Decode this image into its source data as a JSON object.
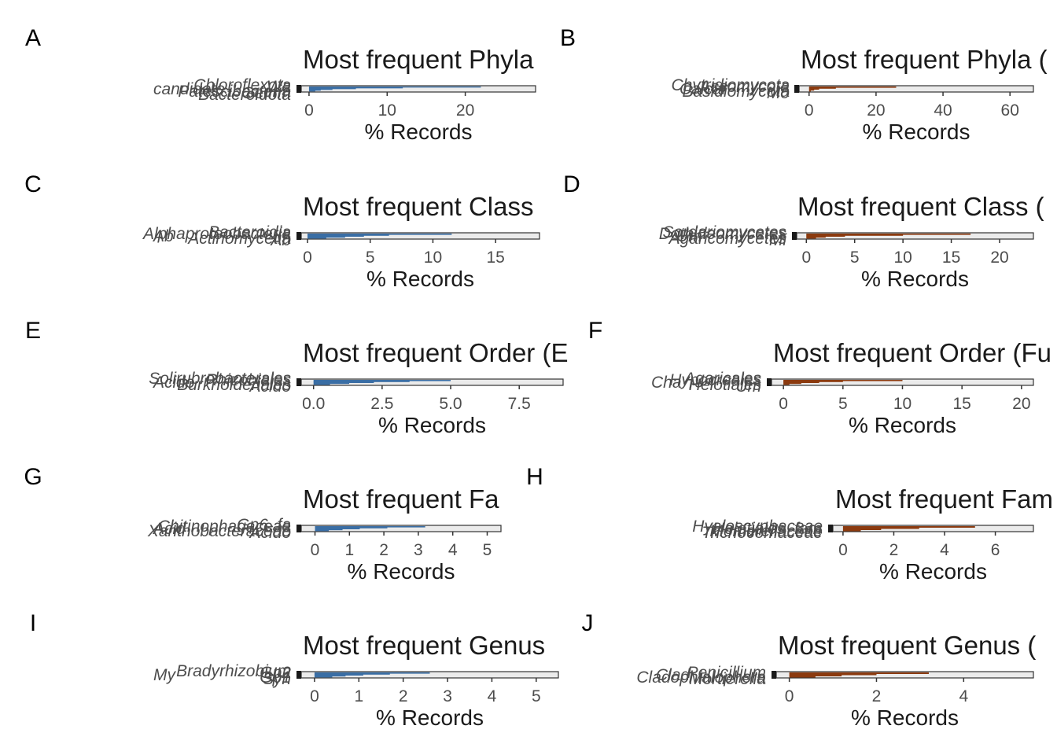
{
  "colors": {
    "bacteria": "#3a6ea5",
    "fungi": "#8b3a0f",
    "panel_bg": "#ebebeb",
    "axis": "#333333"
  },
  "chart_data": [
    {
      "letter": "A",
      "type": "bar",
      "orientation": "horizontal",
      "title": "Most frequent Phyla",
      "xlabel": "% Records",
      "xlim": [
        -1,
        29
      ],
      "xticks": [
        0,
        10,
        20
      ],
      "color": "bacteria",
      "visible_category_labels": [
        "candidate_",
        "Gemm",
        "Wa",
        "Patescibacteria",
        "Chloroflexota",
        "Bacteroidota"
      ],
      "values": [
        22,
        12,
        6,
        3,
        1.5,
        0.8
      ]
    },
    {
      "letter": "B",
      "type": "bar",
      "orientation": "horizontal",
      "title": "Most frequent Phyla (",
      "xlabel": "% Records",
      "xlim": [
        -3,
        67
      ],
      "xticks": [
        0,
        20,
        40,
        60
      ],
      "color": "fungi",
      "visible_category_labels": [
        "Calcar",
        "Mo",
        "Ascomycota",
        "Basidiomycota",
        "Chytridiomycota"
      ],
      "values": [
        26,
        8,
        3,
        1.5,
        0.5
      ]
    },
    {
      "letter": "C",
      "type": "bar",
      "orientation": "horizontal",
      "title": "Most frequent Class",
      "xlabel": "% Records",
      "xlim": [
        -0.5,
        18.5
      ],
      "xticks": [
        0,
        5,
        10,
        15
      ],
      "color": "bacteria",
      "visible_category_labels": [
        "Ab",
        "Ab",
        "Alphaproteobacteria",
        "Actinomycetia",
        "Bacteroidia"
      ],
      "values": [
        11.5,
        6.5,
        4.5,
        3,
        1.5
      ]
    },
    {
      "letter": "D",
      "type": "bar",
      "orientation": "horizontal",
      "title": "Most frequent Class (",
      "xlabel": "% Records",
      "xlim": [
        -1,
        23.5
      ],
      "xticks": [
        0,
        5,
        10,
        15,
        20
      ],
      "color": "fungi",
      "visible_category_labels": [
        "Um",
        "Mi",
        "Dothideomycetes",
        "Agaricomycetes",
        "Sordariomycetes"
      ],
      "values": [
        17,
        10,
        4,
        2,
        1
      ]
    },
    {
      "letter": "E",
      "type": "bar",
      "orientation": "horizontal",
      "title": "Most frequent Order (E",
      "xlabel": "% Records",
      "xlim": [
        -0.45,
        9.1
      ],
      "xticks": [
        0,
        2.5,
        5,
        7.5
      ],
      "tick_labels": [
        "0.0",
        "2.5",
        "5.0",
        "7.5"
      ],
      "color": "bacteria",
      "visible_category_labels": [
        "Acido",
        "Acido",
        "Rhizobiales",
        "Burkholderiales",
        "Solirubrobacterales"
      ],
      "values": [
        5,
        3.5,
        2.2,
        1.3,
        0.6
      ]
    },
    {
      "letter": "F",
      "type": "bar",
      "orientation": "horizontal",
      "title": "Most frequent Order (Fu",
      "xlabel": "% Records",
      "xlim": [
        -1,
        21
      ],
      "xticks": [
        0,
        5,
        10,
        15,
        20
      ],
      "color": "fungi",
      "visible_category_labels": [
        "Cha",
        "Um",
        "Hypocreales",
        "Helotiales",
        "Agaricales"
      ],
      "values": [
        10,
        5,
        3,
        1.5,
        0.5
      ]
    },
    {
      "letter": "G",
      "type": "bar",
      "orientation": "horizontal",
      "title": "Most frequent Fa",
      "xlabel": "% Records",
      "xlim": [
        -0.4,
        5.4
      ],
      "xticks": [
        0,
        1,
        2,
        3,
        4,
        5
      ],
      "color": "bacteria",
      "visible_category_labels": [
        "Acid",
        "Acido",
        "Chitinophagaceae",
        "Xanthobacteraceae",
        "Gp6_fa"
      ],
      "values": [
        3.2,
        2.1,
        1.3,
        0.8,
        0.4
      ]
    },
    {
      "letter": "H",
      "type": "bar",
      "orientation": "horizontal",
      "title": "Most frequent Fam",
      "xlabel": "% Records",
      "xlim": [
        -0.4,
        7.5
      ],
      "xticks": [
        0,
        2,
        4,
        6
      ],
      "color": "fungi",
      "visible_category_labels": [
        "Helotiales_fam",
        "Trichocomaceae",
        "Hyaloscyphaceae",
        "Mortierellaceae"
      ],
      "values": [
        5.2,
        3,
        1.5,
        0.7
      ]
    },
    {
      "letter": "I",
      "type": "bar",
      "orientation": "horizontal",
      "title": "Most frequent Genus",
      "xlabel": "% Records",
      "xlim": [
        -0.3,
        5.5
      ],
      "xticks": [
        0,
        1,
        2,
        3,
        4,
        5
      ],
      "color": "bacteria",
      "visible_category_labels": [
        "My",
        "Syn",
        "Gp2",
        "Gp1",
        "Bradyrhizobium"
      ],
      "values": [
        2.6,
        1.7,
        1.1,
        0.7,
        0.4
      ]
    },
    {
      "letter": "J",
      "type": "bar",
      "orientation": "horizontal",
      "title": "Most frequent Genus (",
      "xlabel": "% Records",
      "xlim": [
        -0.3,
        5.6
      ],
      "xticks": [
        0,
        2,
        4
      ],
      "color": "fungi",
      "visible_category_labels": [
        "Clad",
        "Mortierella",
        "Penicillium",
        "Cladophialophora"
      ],
      "values": [
        3.2,
        2,
        1.2,
        0.6
      ]
    }
  ]
}
